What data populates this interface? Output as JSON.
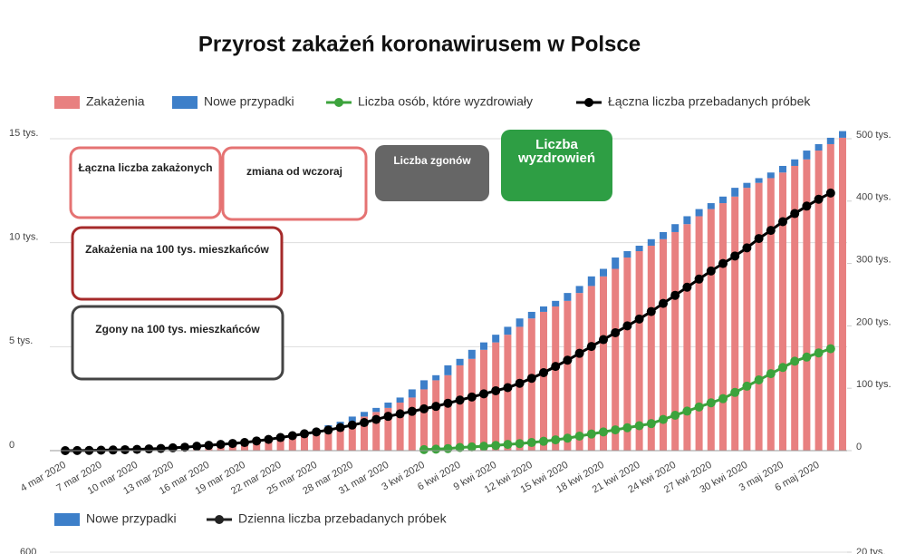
{
  "chart_data": [
    {
      "type": "bar",
      "title": "Przyrost zakażeń koronawirusem w Polsce",
      "categories": [
        "4 mar 2020",
        null,
        null,
        "7 mar 2020",
        null,
        null,
        "10 mar 2020",
        null,
        null,
        "13 mar 2020",
        null,
        null,
        "16 mar 2020",
        null,
        null,
        "19 mar 2020",
        null,
        null,
        "22 mar 2020",
        null,
        null,
        "25 mar 2020",
        null,
        null,
        "28 mar 2020",
        null,
        null,
        "31 mar 2020",
        null,
        null,
        "3 kwi 2020",
        null,
        null,
        "6 kwi 2020",
        null,
        null,
        "9 kwi 2020",
        null,
        null,
        "12 kwi 2020",
        null,
        null,
        "15 kwi 2020",
        null,
        null,
        "18 kwi 2020",
        null,
        null,
        "21 kwi 2020",
        null,
        null,
        "24 kwi 2020",
        null,
        null,
        "27 kwi 2020",
        null,
        null,
        "30 kwi 2020",
        null,
        null,
        "3 maj 2020",
        null,
        null,
        "6 maj 2020",
        null,
        null
      ],
      "series": [
        {
          "name": "Zakażenia",
          "kind": "bar",
          "color": "#e88080",
          "values": [
            0,
            1,
            1,
            5,
            5,
            11,
            16,
            22,
            31,
            51,
            68,
            104,
            125,
            177,
            238,
            251,
            355,
            425,
            536,
            634,
            749,
            901,
            1051,
            1221,
            1389,
            1638,
            1862,
            2055,
            2311,
            2554,
            2946,
            3383,
            3627,
            4102,
            4413,
            4848,
            5205,
            5575,
            5955,
            6356,
            6674,
            6934,
            7202,
            7582,
            7918,
            8379,
            8742,
            9287,
            9593,
            9856,
            10169,
            10511,
            10892,
            11273,
            11617,
            11902,
            12218,
            12640,
            12877,
            13105,
            13375,
            13693,
            14006,
            14431,
            14740,
            15047
          ]
        },
        {
          "name": "Nowe przypadki",
          "kind": "bar",
          "color": "#3d7fc9",
          "values": [
            1,
            0,
            4,
            0,
            6,
            5,
            6,
            9,
            20,
            17,
            36,
            21,
            52,
            61,
            13,
            104,
            70,
            111,
            98,
            115,
            152,
            150,
            170,
            168,
            249,
            224,
            193,
            256,
            243,
            392,
            437,
            244,
            475,
            311,
            435,
            357,
            370,
            380,
            401,
            318,
            260,
            268,
            380,
            336,
            461,
            363,
            545,
            306,
            263,
            313,
            342,
            381,
            381,
            344,
            285,
            316,
            422,
            237,
            228,
            270,
            318,
            313,
            425,
            309,
            307,
            319
          ]
        },
        {
          "name": "Liczba osób, które wyzdrowiały",
          "kind": "line",
          "color": "#3ca33c",
          "values": [
            null,
            null,
            null,
            null,
            null,
            null,
            null,
            null,
            null,
            null,
            null,
            null,
            null,
            null,
            null,
            null,
            null,
            null,
            null,
            null,
            null,
            null,
            null,
            null,
            null,
            null,
            null,
            null,
            null,
            null,
            50,
            70,
            100,
            150,
            180,
            210,
            250,
            300,
            340,
            390,
            450,
            520,
            600,
            700,
            800,
            900,
            1000,
            1100,
            1200,
            1300,
            1500,
            1700,
            1900,
            2100,
            2300,
            2500,
            2800,
            3100,
            3400,
            3700,
            4000,
            4300,
            4500,
            4700,
            4900,
            null
          ]
        },
        {
          "name": "Łączna liczba przebadanych próbek",
          "kind": "line",
          "axis": "y2",
          "color": "#000000",
          "values": [
            0,
            200,
            400,
            700,
            1000,
            1500,
            2000,
            2800,
            3500,
            4500,
            5500,
            7000,
            8500,
            10000,
            11500,
            13000,
            15500,
            18000,
            21000,
            24000,
            27000,
            30000,
            33000,
            37000,
            41000,
            45000,
            50000,
            55000,
            59000,
            63000,
            67000,
            71000,
            76000,
            81000,
            86000,
            91000,
            96000,
            101000,
            108000,
            116000,
            125000,
            135000,
            145000,
            156000,
            167000,
            178000,
            189000,
            200000,
            211000,
            223000,
            236000,
            249000,
            262000,
            275000,
            288000,
            300000,
            312000,
            325000,
            340000,
            353000,
            367000,
            380000,
            392000,
            403000,
            413000,
            null
          ]
        }
      ],
      "ylim": [
        0,
        15000
      ],
      "yticks": [
        0,
        {
          "value": 5000,
          "label": "5 tys."
        },
        {
          "value": 10000,
          "label": "10 tys."
        },
        {
          "value": 15000,
          "label": "15 tys."
        }
      ],
      "y2lim": [
        0,
        500000
      ],
      "y2ticks": [
        0,
        {
          "value": 100000,
          "label": "100 tys."
        },
        {
          "value": 200000,
          "label": "200 tys."
        },
        {
          "value": 300000,
          "label": "300 tys."
        },
        {
          "value": 400000,
          "label": "400 tys."
        },
        {
          "value": 500000,
          "label": "500 tys."
        }
      ],
      "grid": true,
      "legend": "top",
      "overlay_boxes": [
        "Łączna liczba zakażonych",
        "zmiana od wczoraj",
        "Liczba zgonów",
        "Liczba wyzdrowień",
        "Zakażenia na 100 tys. mieszkańców",
        "Zgony na 100 tys. mieszkańców"
      ]
    },
    {
      "type": "bar",
      "series": [
        {
          "name": "Nowe przypadki",
          "kind": "bar",
          "color": "#3d7fc9"
        },
        {
          "name": "Dzienna liczba przebadanych próbek",
          "kind": "line",
          "axis": "y2",
          "color": "#222222"
        }
      ],
      "yticks": [
        600
      ],
      "y2ticks": [
        {
          "value": 20000,
          "label": "20 tys."
        }
      ],
      "legend": "top"
    }
  ]
}
